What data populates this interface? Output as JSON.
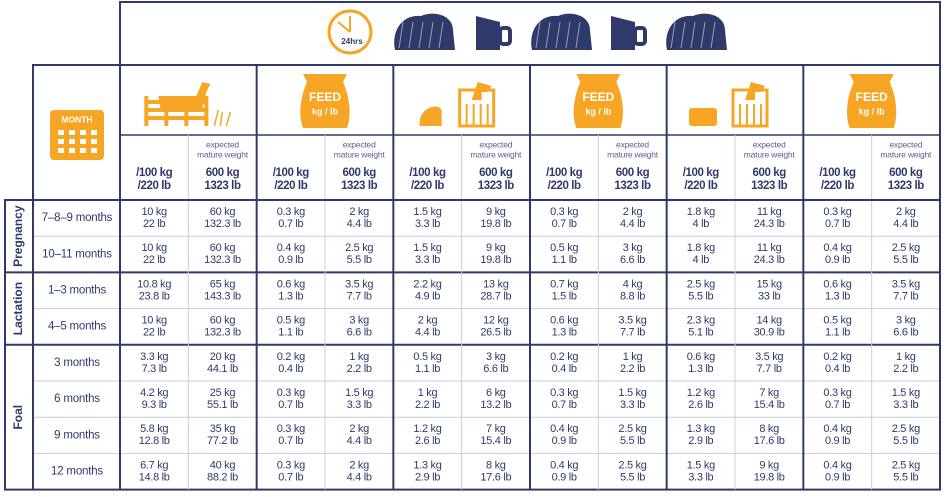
{
  "top_row": {
    "clock_label": "24hrs"
  },
  "calendar_label": "MONTH",
  "feed_bags": [
    {
      "title": "FEED",
      "unit": "kg / lb"
    },
    {
      "title": "FEED",
      "unit": "kg / lb"
    },
    {
      "title": "FEED",
      "unit": "kg / lb"
    }
  ],
  "column_headers": [
    {
      "lines": [
        "/100 kg",
        "/220 lb"
      ]
    },
    {
      "note": [
        "expected",
        "mature weight"
      ],
      "lines": [
        "600 kg",
        "1323 lb"
      ]
    },
    {
      "lines": [
        "/100 kg",
        "/220 lb"
      ]
    },
    {
      "note": [
        "expected",
        "mature weight"
      ],
      "lines": [
        "600 kg",
        "1323 lb"
      ]
    },
    {
      "lines": [
        "/100 kg",
        "/220 lb"
      ]
    },
    {
      "note": [
        "expected",
        "mature weight"
      ],
      "lines": [
        "600 kg",
        "1323 lb"
      ]
    },
    {
      "lines": [
        "/100 kg",
        "/220 lb"
      ]
    },
    {
      "note": [
        "expected",
        "mature weight"
      ],
      "lines": [
        "600 kg",
        "1323 lb"
      ]
    },
    {
      "lines": [
        "/100 kg",
        "/220 lb"
      ]
    },
    {
      "note": [
        "expected",
        "mature weight"
      ],
      "lines": [
        "600 kg",
        "1323 lb"
      ]
    },
    {
      "lines": [
        "/100 kg",
        "/220 lb"
      ]
    },
    {
      "note": [
        "expected",
        "mature weight"
      ],
      "lines": [
        "600 kg",
        "1323 lb"
      ]
    }
  ],
  "groups": [
    {
      "label": "Pregnancy",
      "rows": [
        {
          "label": "7–8–9 months",
          "cells": [
            [
              "10 kg",
              "22 lb"
            ],
            [
              "60 kg",
              "132.3 lb"
            ],
            [
              "0.3 kg",
              "0.7 lb"
            ],
            [
              "2 kg",
              "4.4 lb"
            ],
            [
              "1.5 kg",
              "3.3 lb"
            ],
            [
              "9 kg",
              "19.8 lb"
            ],
            [
              "0.3 kg",
              "0.7 lb"
            ],
            [
              "2 kg",
              "4.4 lb"
            ],
            [
              "1.8 kg",
              "4 lb"
            ],
            [
              "11 kg",
              "24.3 lb"
            ],
            [
              "0.3 kg",
              "0.7 lb"
            ],
            [
              "2 kg",
              "4.4 lb"
            ]
          ]
        },
        {
          "label": "10–11 months",
          "cells": [
            [
              "10 kg",
              "22 lb"
            ],
            [
              "60 kg",
              "132.3 lb"
            ],
            [
              "0.4 kg",
              "0.9 lb"
            ],
            [
              "2.5 kg",
              "5.5 lb"
            ],
            [
              "1.5 kg",
              "3.3 lb"
            ],
            [
              "9 kg",
              "19.8 lb"
            ],
            [
              "0.5 kg",
              "1.1 lb"
            ],
            [
              "3 kg",
              "6.6 lb"
            ],
            [
              "1.8 kg",
              "4 lb"
            ],
            [
              "11 kg",
              "24.3 lb"
            ],
            [
              "0.4 kg",
              "0.9 lb"
            ],
            [
              "2.5 kg",
              "5.5 lb"
            ]
          ]
        }
      ]
    },
    {
      "label": "Lactation",
      "rows": [
        {
          "label": "1–3 months",
          "cells": [
            [
              "10.8 kg",
              "23.8 lb"
            ],
            [
              "65 kg",
              "143.3 lb"
            ],
            [
              "0.6 kg",
              "1.3 lb"
            ],
            [
              "3.5 kg",
              "7.7 lb"
            ],
            [
              "2.2 kg",
              "4.9 lb"
            ],
            [
              "13 kg",
              "28.7 lb"
            ],
            [
              "0.7 kg",
              "1.5 lb"
            ],
            [
              "4 kg",
              "8.8 lb"
            ],
            [
              "2.5 kg",
              "5.5 lb"
            ],
            [
              "15 kg",
              "33 lb"
            ],
            [
              "0.6 kg",
              "1.3 lb"
            ],
            [
              "3.5 kg",
              "7.7 lb"
            ]
          ]
        },
        {
          "label": "4–5 months",
          "cells": [
            [
              "10 kg",
              "22 lb"
            ],
            [
              "60 kg",
              "132.3 lb"
            ],
            [
              "0.5 kg",
              "1.1 lb"
            ],
            [
              "3 kg",
              "6.6 lb"
            ],
            [
              "2 kg",
              "4.4 lb"
            ],
            [
              "12 kg",
              "26.5 lb"
            ],
            [
              "0.6 kg",
              "1.3 lb"
            ],
            [
              "3.5 kg",
              "7.7 lb"
            ],
            [
              "2.3 kg",
              "5.1 lb"
            ],
            [
              "14 kg",
              "30.9 lb"
            ],
            [
              "0.5 kg",
              "1.1 lb"
            ],
            [
              "3 kg",
              "6.6 lb"
            ]
          ]
        }
      ]
    },
    {
      "label": "Foal",
      "rows": [
        {
          "label": "3 months",
          "cells": [
            [
              "3.3 kg",
              "7.3 lb"
            ],
            [
              "20 kg",
              "44.1 lb"
            ],
            [
              "0.2 kg",
              "0.4 lb"
            ],
            [
              "1 kg",
              "2.2 lb"
            ],
            [
              "0.5 kg",
              "1.1 lb"
            ],
            [
              "3 kg",
              "6.6 lb"
            ],
            [
              "0.2 kg",
              "0.4 lb"
            ],
            [
              "1 kg",
              "2.2 lb"
            ],
            [
              "0.6 kg",
              "1.3 lb"
            ],
            [
              "3.5 kg",
              "7.7 lb"
            ],
            [
              "0.2 kg",
              "0.4 lb"
            ],
            [
              "1 kg",
              "2.2 lb"
            ]
          ]
        },
        {
          "label": "6 months",
          "cells": [
            [
              "4.2 kg",
              "9.3 lb"
            ],
            [
              "25 kg",
              "55.1 lb"
            ],
            [
              "0.3 kg",
              "0.7 lb"
            ],
            [
              "1.5 kg",
              "3.3 lb"
            ],
            [
              "1 kg",
              "2.2 lb"
            ],
            [
              "6 kg",
              "13.2 lb"
            ],
            [
              "0.3 kg",
              "0.7 lb"
            ],
            [
              "1.5 kg",
              "3.3 lb"
            ],
            [
              "1.2 kg",
              "2.6 lb"
            ],
            [
              "7 kg",
              "15.4 lb"
            ],
            [
              "0.3 kg",
              "0.7 lb"
            ],
            [
              "1.5 kg",
              "3.3 lb"
            ]
          ]
        },
        {
          "label": "9 months",
          "cells": [
            [
              "5.8 kg",
              "12.8 lb"
            ],
            [
              "35 kg",
              "77.2 lb"
            ],
            [
              "0.3 kg",
              "0.7 lb"
            ],
            [
              "2 kg",
              "4.4 lb"
            ],
            [
              "1.2 kg",
              "2.6 lb"
            ],
            [
              "7 kg",
              "15.4 lb"
            ],
            [
              "0.4 kg",
              "0.9 lb"
            ],
            [
              "2.5 kg",
              "5.5 lb"
            ],
            [
              "1.3 kg",
              "2.9 lb"
            ],
            [
              "8 kg",
              "17.6 lb"
            ],
            [
              "0.4 kg",
              "0.9 lb"
            ],
            [
              "2.5 kg",
              "5.5 lb"
            ]
          ]
        },
        {
          "label": "12 months",
          "cells": [
            [
              "6.7 kg",
              "14.8 lb"
            ],
            [
              "40 kg",
              "88.2 lb"
            ],
            [
              "0.3 kg",
              "0.7 lb"
            ],
            [
              "2 kg",
              "4.4 lb"
            ],
            [
              "1.3 kg",
              "2.9 lb"
            ],
            [
              "8 kg",
              "17.6 lb"
            ],
            [
              "0.4 kg",
              "0.9 lb"
            ],
            [
              "2.5 kg",
              "5.5 lb"
            ],
            [
              "1.5 kg",
              "3.3 lb"
            ],
            [
              "9 kg",
              "19.8 lb"
            ],
            [
              "0.4 kg",
              "0.9 lb"
            ],
            [
              "2.5 kg",
              "5.5 lb"
            ]
          ]
        }
      ]
    }
  ]
}
